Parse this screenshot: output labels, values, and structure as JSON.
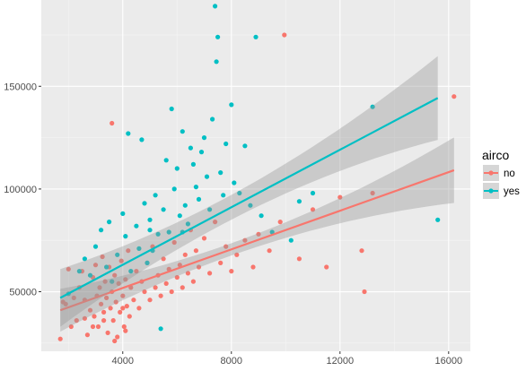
{
  "chart_data": {
    "type": "scatter",
    "title": "",
    "xlabel": "",
    "ylabel": "",
    "xlim": [
      1000,
      16800
    ],
    "ylim": [
      21000,
      192000
    ],
    "x_ticks": [
      4000,
      8000,
      12000,
      16000
    ],
    "y_ticks": [
      50000,
      100000,
      150000
    ],
    "x_tick_labels": [
      "4000",
      "8000",
      "12000",
      "16000"
    ],
    "y_tick_labels": [
      "50000",
      "100000",
      "150000"
    ],
    "grid": true,
    "legend": {
      "title": "airco",
      "position": "right",
      "entries": [
        "no",
        "yes"
      ]
    },
    "series": [
      {
        "name": "no",
        "color": "#F8766D",
        "points": [
          [
            1700,
            27000
          ],
          [
            1800,
            45000
          ],
          [
            1900,
            44000
          ],
          [
            2000,
            61000
          ],
          [
            2100,
            33000
          ],
          [
            2200,
            47000
          ],
          [
            2300,
            36000
          ],
          [
            2400,
            52000
          ],
          [
            2500,
            60000
          ],
          [
            2600,
            46000
          ],
          [
            2700,
            29000
          ],
          [
            2800,
            41000
          ],
          [
            2900,
            57000
          ],
          [
            2950,
            38000
          ],
          [
            3000,
            63000
          ],
          [
            3050,
            48000
          ],
          [
            3100,
            33000
          ],
          [
            3150,
            52000
          ],
          [
            3200,
            44000
          ],
          [
            3250,
            67000
          ],
          [
            3300,
            36000
          ],
          [
            3350,
            55000
          ],
          [
            3400,
            47000
          ],
          [
            3450,
            30000
          ],
          [
            3500,
            62000
          ],
          [
            3550,
            42000
          ],
          [
            3600,
            50000
          ],
          [
            3650,
            36000
          ],
          [
            3700,
            58000
          ],
          [
            3750,
            45000
          ],
          [
            3800,
            28000
          ],
          [
            3850,
            54000
          ],
          [
            3900,
            40000
          ],
          [
            3950,
            65000
          ],
          [
            4000,
            48000
          ],
          [
            4050,
            33000
          ],
          [
            4100,
            56000
          ],
          [
            4150,
            43000
          ],
          [
            4200,
            70000
          ],
          [
            4250,
            38000
          ],
          [
            4300,
            52000
          ],
          [
            4400,
            46000
          ],
          [
            4500,
            60000
          ],
          [
            4600,
            42000
          ],
          [
            4700,
            55000
          ],
          [
            4800,
            50000
          ],
          [
            4900,
            64000
          ],
          [
            5000,
            46000
          ],
          [
            5100,
            72000
          ],
          [
            5200,
            52000
          ],
          [
            5300,
            58000
          ],
          [
            5400,
            48000
          ],
          [
            5500,
            66000
          ],
          [
            5600,
            54000
          ],
          [
            5700,
            61000
          ],
          [
            5800,
            50000
          ],
          [
            5900,
            74000
          ],
          [
            6000,
            57000
          ],
          [
            6100,
            63000
          ],
          [
            6200,
            52000
          ],
          [
            6300,
            68000
          ],
          [
            6400,
            59000
          ],
          [
            6500,
            80000
          ],
          [
            6600,
            55000
          ],
          [
            6700,
            70000
          ],
          [
            6800,
            62000
          ],
          [
            7000,
            76000
          ],
          [
            7200,
            59000
          ],
          [
            7400,
            84000
          ],
          [
            7600,
            64000
          ],
          [
            7800,
            72000
          ],
          [
            8000,
            60000
          ],
          [
            8200,
            68000
          ],
          [
            8500,
            75000
          ],
          [
            8800,
            62000
          ],
          [
            9000,
            78000
          ],
          [
            9400,
            70000
          ],
          [
            9800,
            84000
          ],
          [
            9950,
            175000
          ],
          [
            10500,
            66000
          ],
          [
            11000,
            90000
          ],
          [
            11500,
            62000
          ],
          [
            12000,
            96000
          ],
          [
            12800,
            70000
          ],
          [
            12900,
            50000
          ],
          [
            13200,
            98000
          ],
          [
            16200,
            145000
          ],
          [
            3600,
            132000
          ],
          [
            4000,
            42000
          ],
          [
            3300,
            40000
          ],
          [
            2600,
            37000
          ],
          [
            2900,
            33000
          ],
          [
            3700,
            26000
          ],
          [
            4100,
            31000
          ]
        ]
      },
      {
        "name": "yes",
        "color": "#00BFC4",
        "points": [
          [
            2000,
            49000
          ],
          [
            2400,
            60000
          ],
          [
            2600,
            66000
          ],
          [
            2800,
            58000
          ],
          [
            3000,
            72000
          ],
          [
            3200,
            80000
          ],
          [
            3400,
            62000
          ],
          [
            3600,
            55000
          ],
          [
            3800,
            68000
          ],
          [
            4000,
            88000
          ],
          [
            4100,
            77000
          ],
          [
            4300,
            60000
          ],
          [
            4500,
            82000
          ],
          [
            4600,
            71000
          ],
          [
            4700,
            124000
          ],
          [
            4800,
            93000
          ],
          [
            4900,
            64000
          ],
          [
            5000,
            85000
          ],
          [
            5100,
            70000
          ],
          [
            5200,
            97000
          ],
          [
            5300,
            78000
          ],
          [
            5400,
            32000
          ],
          [
            5500,
            90000
          ],
          [
            5600,
            114000
          ],
          [
            5700,
            79000
          ],
          [
            5800,
            139000
          ],
          [
            5900,
            100000
          ],
          [
            6000,
            110000
          ],
          [
            6100,
            87000
          ],
          [
            6200,
            128000
          ],
          [
            6300,
            92000
          ],
          [
            6400,
            83000
          ],
          [
            6500,
            120000
          ],
          [
            6600,
            112000
          ],
          [
            6700,
            101000
          ],
          [
            6800,
            95000
          ],
          [
            6900,
            118000
          ],
          [
            7000,
            125000
          ],
          [
            7100,
            106000
          ],
          [
            7200,
            90000
          ],
          [
            7300,
            134000
          ],
          [
            7400,
            189000
          ],
          [
            7450,
            162000
          ],
          [
            7500,
            174000
          ],
          [
            7600,
            108000
          ],
          [
            7700,
            97000
          ],
          [
            7800,
            122000
          ],
          [
            8000,
            141000
          ],
          [
            8100,
            103000
          ],
          [
            8300,
            98000
          ],
          [
            8500,
            121000
          ],
          [
            8700,
            92000
          ],
          [
            8900,
            174000
          ],
          [
            9100,
            87000
          ],
          [
            9500,
            79000
          ],
          [
            10200,
            75000
          ],
          [
            10500,
            94000
          ],
          [
            11000,
            98000
          ],
          [
            13200,
            140000
          ],
          [
            15600,
            85000
          ],
          [
            6200,
            79000
          ],
          [
            4200,
            127000
          ],
          [
            5000,
            80000
          ],
          [
            3500,
            84000
          ]
        ]
      }
    ],
    "fit_lines": [
      {
        "series": "no",
        "x_range": [
          1700,
          16200
        ],
        "intercept": 41000,
        "slope": 4.7,
        "ci": [
          3000,
          13000
        ]
      },
      {
        "series": "yes",
        "x_range": [
          1700,
          15600
        ],
        "intercept": 47000,
        "slope": 7.0,
        "ci": [
          6000,
          17000
        ]
      }
    ]
  }
}
